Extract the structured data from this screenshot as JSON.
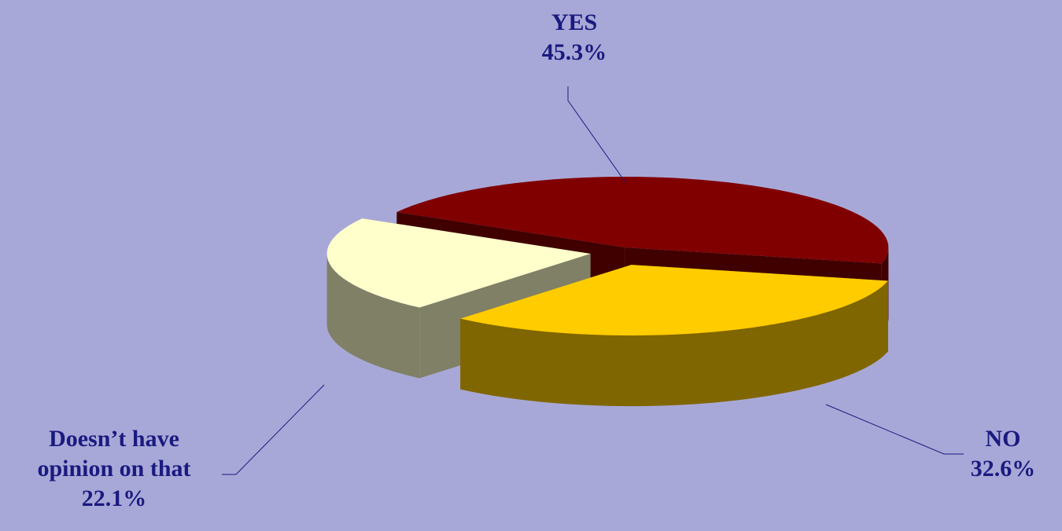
{
  "chart_data": {
    "type": "pie",
    "style": "3d-exploded",
    "slices": [
      {
        "label": "YES",
        "value": 45.3,
        "value_text": "45.3%",
        "top_color": "#800000",
        "side_color": "#400000"
      },
      {
        "label": "NO",
        "value": 32.6,
        "value_text": "32.6%",
        "top_color": "#ffcc00",
        "side_color": "#806600"
      },
      {
        "label_lines": [
          "Doesn’t have",
          "opinion on that"
        ],
        "value": 22.1,
        "value_text": "22.1%",
        "top_color": "#ffffcc",
        "side_color": "#808066"
      }
    ],
    "label_color": "#1a1a80",
    "background": "#a8a8d8"
  }
}
